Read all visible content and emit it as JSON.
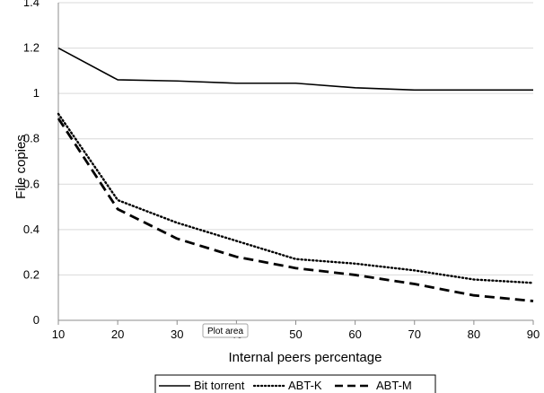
{
  "chart_data": {
    "type": "line",
    "xlabel": "Internal peers percentage",
    "ylabel": "File copies",
    "x": [
      10,
      20,
      30,
      40,
      50,
      60,
      70,
      80,
      90
    ],
    "xlim": [
      10,
      90
    ],
    "ylim": [
      0,
      1.4
    ],
    "x_ticks": [
      "10",
      "20",
      "30",
      "40",
      "50",
      "60",
      "70",
      "80",
      "90"
    ],
    "y_ticks": [
      "0",
      "0.2",
      "0.4",
      "0.6",
      "0.8",
      "1",
      "1.2",
      "1.4"
    ],
    "grid": "horizontal",
    "legend_placement": "bottom",
    "series": [
      {
        "name": "Bit torrent",
        "style": "solid",
        "values": [
          1.2,
          1.06,
          1.055,
          1.045,
          1.045,
          1.025,
          1.015,
          1.015,
          1.015
        ]
      },
      {
        "name": "ABT-K",
        "style": "dotted",
        "values": [
          0.91,
          0.53,
          0.43,
          0.35,
          0.27,
          0.25,
          0.22,
          0.18,
          0.165
        ]
      },
      {
        "name": "ABT-M",
        "style": "dashed",
        "values": [
          0.89,
          0.49,
          0.36,
          0.28,
          0.23,
          0.2,
          0.16,
          0.11,
          0.085
        ]
      }
    ],
    "tooltip": "Plot area",
    "colors": {
      "line": "#000000",
      "grid": "#d9d9d9",
      "axis": "#8c8c8c"
    }
  }
}
